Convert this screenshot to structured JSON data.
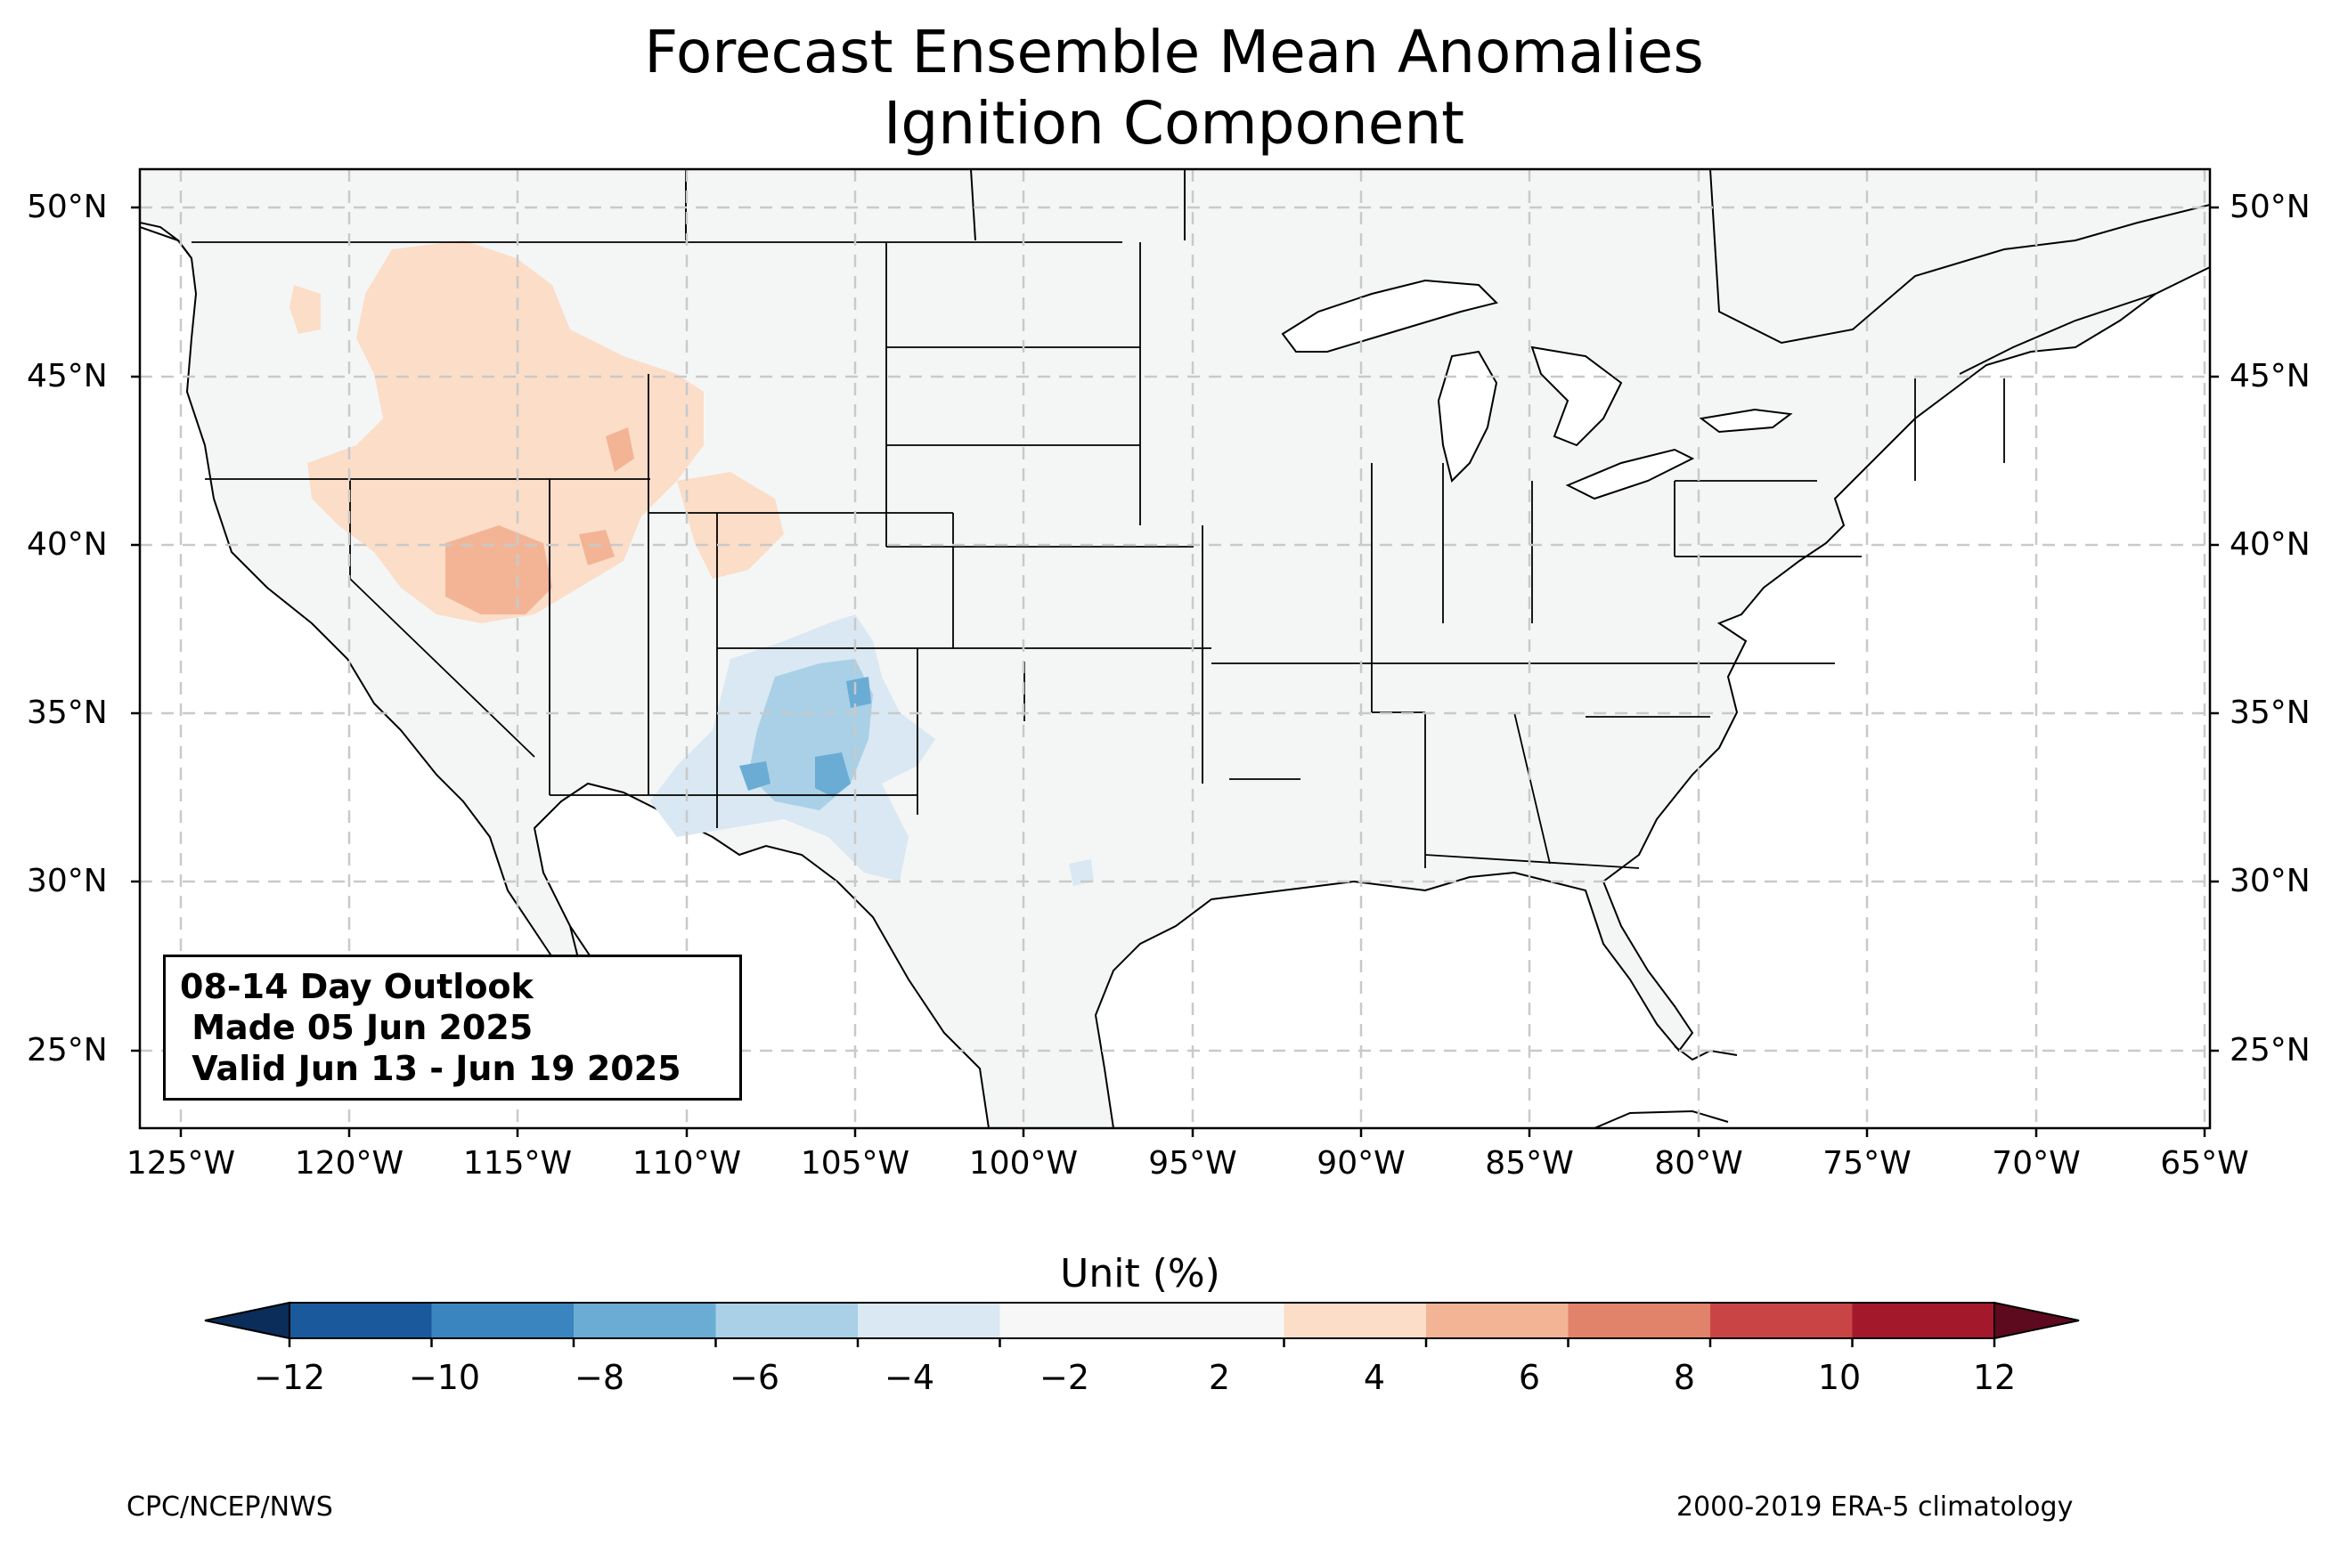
{
  "title": {
    "line1": "Forecast Ensemble Mean Anomalies",
    "line2": "Ignition Component"
  },
  "map": {
    "projection": "PlateCarree",
    "extent_lon": [
      -126.3,
      -64.9
    ],
    "extent_lat": [
      22.8,
      51.1
    ],
    "gridlines": true,
    "background_color": "#f4f6f6",
    "lat_ticks": [
      {
        "value": 50,
        "label": "50°N"
      },
      {
        "value": 45,
        "label": "45°N"
      },
      {
        "value": 40,
        "label": "40°N"
      },
      {
        "value": 35,
        "label": "35°N"
      },
      {
        "value": 30,
        "label": "30°N"
      },
      {
        "value": 25,
        "label": "25°N"
      }
    ],
    "lon_ticks": [
      {
        "value": -125,
        "label": "125°W"
      },
      {
        "value": -120,
        "label": "120°W"
      },
      {
        "value": -115,
        "label": "115°W"
      },
      {
        "value": -110,
        "label": "110°W"
      },
      {
        "value": -105,
        "label": "105°W"
      },
      {
        "value": -100,
        "label": "100°W"
      },
      {
        "value": -95,
        "label": "95°W"
      },
      {
        "value": -90,
        "label": "90°W"
      },
      {
        "value": -85,
        "label": "85°W"
      },
      {
        "value": -80,
        "label": "80°W"
      },
      {
        "value": -75,
        "label": "75°W"
      },
      {
        "value": -70,
        "label": "70°W"
      },
      {
        "value": -65,
        "label": "65°W"
      }
    ],
    "anomaly_regions": [
      {
        "sign": "positive",
        "region": "Northern Rockies / Idaho",
        "level": 4
      },
      {
        "sign": "positive",
        "region": "Utah / Great Basin",
        "level": 6
      },
      {
        "sign": "positive",
        "region": "Wyoming / Colorado",
        "level": 4
      },
      {
        "sign": "negative",
        "region": "New Mexico / Arizona",
        "level": -6
      },
      {
        "sign": "negative",
        "region": "Far West Texas",
        "level": -4
      }
    ]
  },
  "outlook": {
    "line1": "08-14 Day Outlook",
    "line2": " Made 05 Jun 2025",
    "line3": " Valid Jun 13 - Jun 19 2025"
  },
  "colorbar": {
    "label": "Unit (%)",
    "ticks": [
      "−12",
      "−10",
      "−8",
      "−6",
      "−4",
      "−2",
      "2",
      "4",
      "6",
      "8",
      "10",
      "12"
    ],
    "bins": [
      {
        "from": -12,
        "to": -10,
        "color": "#1a5a9c"
      },
      {
        "from": -10,
        "to": -8,
        "color": "#3a85bf"
      },
      {
        "from": -8,
        "to": -6,
        "color": "#6aacd4"
      },
      {
        "from": -6,
        "to": -4,
        "color": "#a9d0e6"
      },
      {
        "from": -4,
        "to": -2,
        "color": "#d9e8f2"
      },
      {
        "from": -2,
        "to": 2,
        "color": "#f7f7f7"
      },
      {
        "from": 2,
        "to": 4,
        "color": "#fbddc8"
      },
      {
        "from": 4,
        "to": 6,
        "color": "#f3b496"
      },
      {
        "from": 6,
        "to": 8,
        "color": "#e1826a"
      },
      {
        "from": 8,
        "to": 10,
        "color": "#c94545"
      },
      {
        "from": 10,
        "to": 12,
        "color": "#a3182a"
      }
    ],
    "under_color": "#0a2d5a",
    "over_color": "#5e0a1e"
  },
  "footer": {
    "left": "CPC/NCEP/NWS",
    "right": "2000-2019 ERA-5 climatology"
  }
}
